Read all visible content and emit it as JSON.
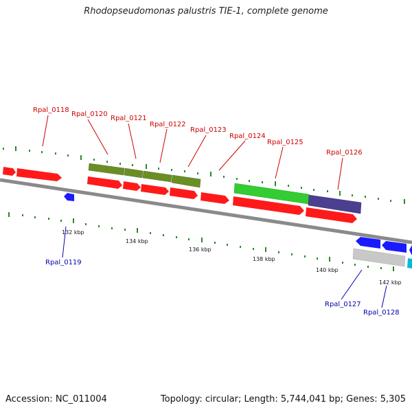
{
  "title": "Rhodopseudomonas palustris TIE-1, complete genome",
  "accession": "Accession: NC_011004",
  "summary": "Topology: circular; Length: 5,744,041 bp; Genes: 5,305",
  "ticks": [
    "132 kbp",
    "134 kbp",
    "136 kbp",
    "138 kbp",
    "140 kbp",
    "142 kbp"
  ],
  "gene_labels": {
    "top": [
      "Rpal_0118",
      "Rpal_0120",
      "Rpal_0121",
      "Rpal_0122",
      "Rpal_0123",
      "Rpal_0124",
      "Rpal_0125",
      "Rpal_0126"
    ],
    "bottom": [
      "Rpal_0119",
      "Rpal_0127",
      "Rpal_0128"
    ]
  },
  "colors": {
    "forward_label": "#cc0000",
    "reverse_label": "#0000aa",
    "cds": "#ff1a1a",
    "reverse_cds": "#1a1aff",
    "olive": "#6b8e23",
    "green": "#33cc33",
    "navy": "#4b3f8f",
    "gray": "#c8c8c8",
    "cyan": "#00bcd4",
    "backbone": "#888888",
    "tick": "#228b22"
  }
}
